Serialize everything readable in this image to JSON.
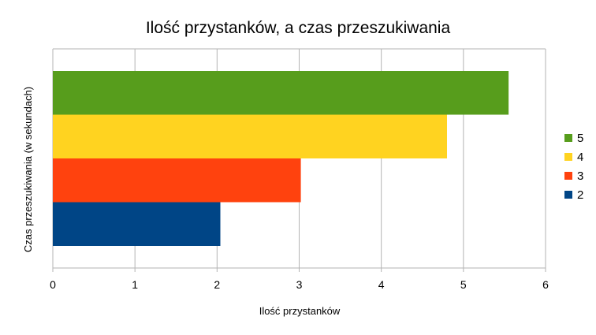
{
  "chart_data": {
    "type": "bar",
    "orientation": "horizontal",
    "title": "Ilość przystanków, a czas przeszukiwania",
    "xlabel": "Ilość przystanków",
    "ylabel": "Czas przeszukiwania (w sekundach)",
    "xlim": [
      0,
      6
    ],
    "xticks": [
      "0",
      "1",
      "2",
      "3",
      "4",
      "5",
      "6"
    ],
    "grid": true,
    "legend_position": "right",
    "series": [
      {
        "name": "5",
        "value": 5.55,
        "color": "#579d1c"
      },
      {
        "name": "4",
        "value": 4.8,
        "color": "#ffd320"
      },
      {
        "name": "3",
        "value": 3.02,
        "color": "#ff420e"
      },
      {
        "name": "2",
        "value": 2.04,
        "color": "#004586"
      }
    ]
  }
}
